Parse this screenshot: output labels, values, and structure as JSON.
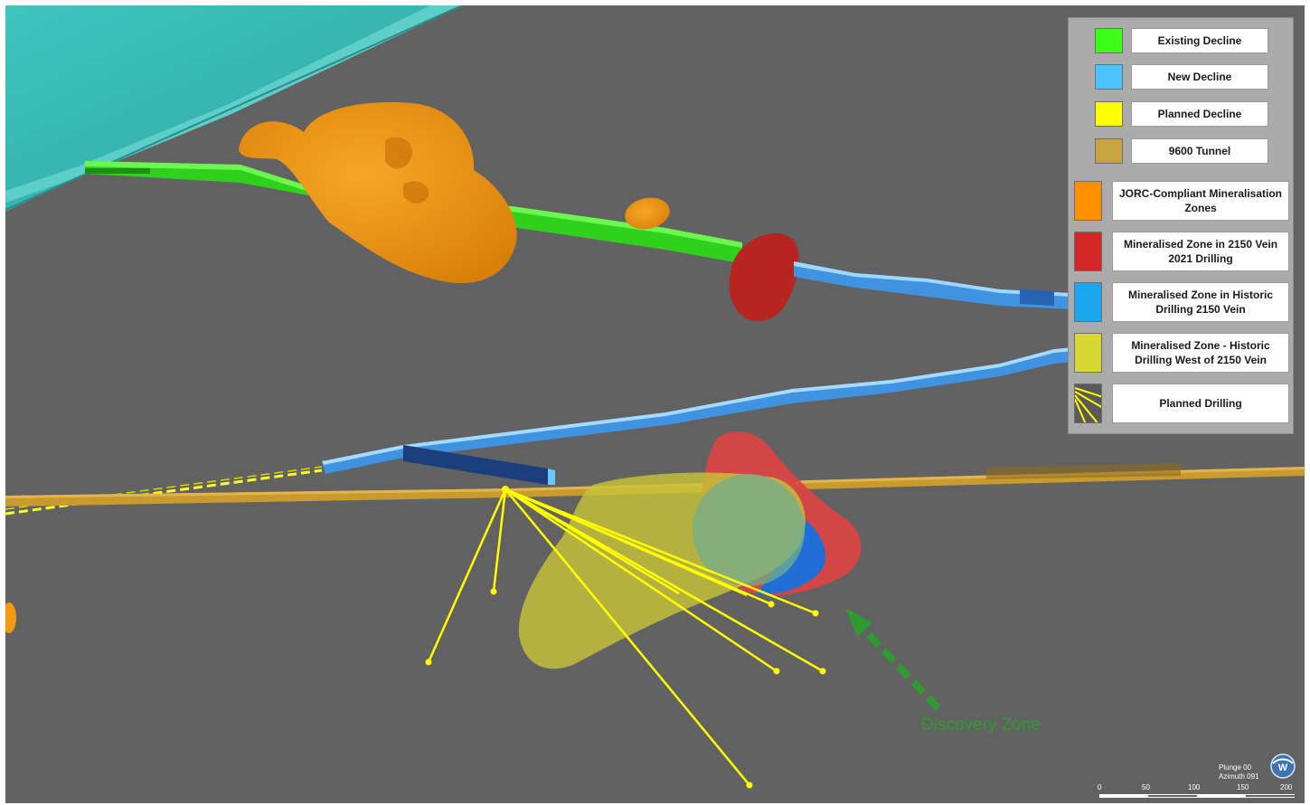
{
  "legend": {
    "items": [
      {
        "label": "Existing Decline",
        "color": "#3cff17",
        "icon": "swatch-square"
      },
      {
        "label": "New Decline",
        "color": "#4dc3ff",
        "icon": "swatch-square"
      },
      {
        "label": "Planned Decline",
        "color": "#ffff00",
        "icon": "swatch-square"
      },
      {
        "label": "9600 Tunnel",
        "color": "#c9a33e",
        "icon": "swatch-square"
      },
      {
        "label": "JORC-Compliant Mineralisation Zones",
        "color": "#ff8f00",
        "icon": "swatch-tall"
      },
      {
        "label": "Mineralised Zone in 2150 Vein 2021 Drilling",
        "color": "#d42828",
        "icon": "swatch-tall"
      },
      {
        "label": "Mineralised Zone in Historic Drilling 2150 Vein",
        "color": "#1ba6f0",
        "icon": "swatch-tall"
      },
      {
        "label": "Mineralised Zone - Historic Drilling West of 2150 Vein",
        "color": "#d8d834",
        "icon": "swatch-tall"
      },
      {
        "label": "Planned Drilling",
        "color": "#ffff00",
        "icon": "drill-lines-icon"
      }
    ]
  },
  "annotation": {
    "label": "Discovery Zone",
    "color": "#2f9a2f"
  },
  "navigator": {
    "plunge": "Plunge 00",
    "azimuth": "Azimuth 091",
    "icon": "globe-compass-icon"
  },
  "scale_bar": {
    "ticks": [
      "0",
      "50",
      "100",
      "150",
      "200"
    ]
  },
  "colors": {
    "background": "#626262",
    "surface": "#3cb8b6",
    "existing_decline": "#2fd11d",
    "new_decline": "#3f93e0",
    "tunnel_9600": "#c99a2e",
    "jorc_zone": "#f19a12",
    "vein_2021": "#c62828",
    "historic_vein": "#1f6fd6",
    "historic_west": "#c8c33a",
    "planned_drilling": "#ffff00"
  }
}
